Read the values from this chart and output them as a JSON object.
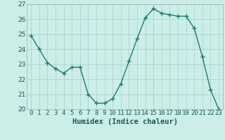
{
  "x": [
    0,
    1,
    2,
    3,
    4,
    5,
    6,
    7,
    8,
    9,
    10,
    11,
    12,
    13,
    14,
    15,
    16,
    17,
    18,
    19,
    20,
    21,
    22,
    23
  ],
  "y": [
    24.9,
    24.0,
    23.1,
    22.7,
    22.4,
    22.8,
    22.8,
    21.0,
    20.4,
    20.4,
    20.7,
    21.7,
    23.2,
    24.7,
    26.1,
    26.7,
    26.4,
    26.3,
    26.2,
    26.2,
    25.4,
    23.5,
    21.3,
    20.0
  ],
  "line_color": "#1f7a6e",
  "marker": "+",
  "marker_size": 4,
  "marker_linewidth": 1.0,
  "bg_color": "#cceee8",
  "grid_color": "#aad4ce",
  "xlabel": "Humidex (Indice chaleur)",
  "ylim": [
    20,
    27
  ],
  "xlim": [
    -0.5,
    23.5
  ],
  "yticks": [
    20,
    21,
    22,
    23,
    24,
    25,
    26,
    27
  ],
  "xticks": [
    0,
    1,
    2,
    3,
    4,
    5,
    6,
    7,
    8,
    9,
    10,
    11,
    12,
    13,
    14,
    15,
    16,
    17,
    18,
    19,
    20,
    21,
    22,
    23
  ],
  "xlabel_fontsize": 7.5,
  "tick_fontsize": 6.5,
  "linewidth": 1.0
}
